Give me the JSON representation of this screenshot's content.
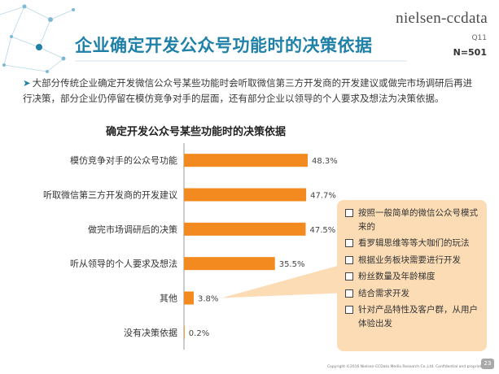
{
  "header": {
    "logo": "nielsen-ccdata",
    "title": "企业确定开发公众号功能时的决策依据",
    "question_id": "Q11",
    "sample_size": "N=501"
  },
  "description": "大部分传统企业确定开发微信公众号某些功能时会听取微信第三方开发商的开发建议或做完市场调研后再进行决策，部分企业仍停留在模仿竞争对手的层面，还有部分企业以领导的个人要求及想法为决策依据。",
  "chart_data": {
    "type": "bar",
    "orientation": "horizontal",
    "title": "确定开发公众号某些功能时的决策依据",
    "categories": [
      "模仿竞争对手的公众号功能",
      "听取微信第三方开发商的开发建议",
      "做完市场调研后的决策",
      "听从领导的个人要求及想法",
      "其他",
      "没有决策依据"
    ],
    "values": [
      48.3,
      47.7,
      47.5,
      35.5,
      3.8,
      0.2
    ],
    "value_labels": [
      "48.3%",
      "47.7%",
      "47.5%",
      "35.5%",
      "3.8%",
      "0.2%"
    ],
    "bar_color": "#f28a1f",
    "xlim": [
      0,
      100
    ]
  },
  "callout": {
    "items": [
      "按照一般简单的微信公众号模式来的",
      "看罗辑思维等等大咖们的玩法",
      "根据业务板块需要进行开发",
      "粉丝数量及年龄梯度",
      "结合需求开发",
      "针对产品特性及客户群，从用户体验出发"
    ]
  },
  "footer": {
    "copyright": "Copyright ©2016 Nielsen-CCData Media Research Co.,Ltd. Confidential and proprietary.",
    "page_number": "23"
  },
  "colors": {
    "accent": "#1f80a8",
    "bar": "#f28a1f",
    "callout": "#fbdcb5"
  }
}
